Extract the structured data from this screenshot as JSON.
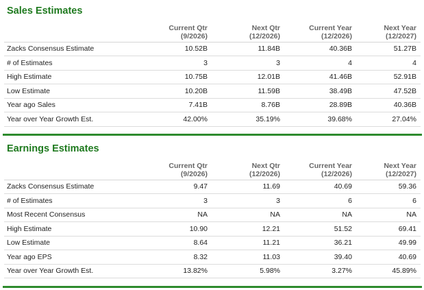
{
  "sales": {
    "title": "Sales Estimates",
    "columns": [
      {
        "line1": "Current Qtr",
        "line2": "(9/2026)"
      },
      {
        "line1": "Next Qtr",
        "line2": "(12/2026)"
      },
      {
        "line1": "Current Year",
        "line2": "(12/2026)"
      },
      {
        "line1": "Next Year",
        "line2": "(12/2027)"
      }
    ],
    "rows": [
      {
        "label": "Zacks Consensus Estimate",
        "values": [
          "10.52B",
          "11.84B",
          "40.36B",
          "51.27B"
        ]
      },
      {
        "label": "# of Estimates",
        "values": [
          "3",
          "3",
          "4",
          "4"
        ]
      },
      {
        "label": "High Estimate",
        "values": [
          "10.75B",
          "12.01B",
          "41.46B",
          "52.91B"
        ]
      },
      {
        "label": "Low Estimate",
        "values": [
          "10.20B",
          "11.59B",
          "38.49B",
          "47.52B"
        ]
      },
      {
        "label": "Year ago Sales",
        "values": [
          "7.41B",
          "8.76B",
          "28.89B",
          "40.36B"
        ]
      },
      {
        "label": "Year over Year Growth Est.",
        "values": [
          "42.00%",
          "35.19%",
          "39.68%",
          "27.04%"
        ]
      }
    ]
  },
  "earnings": {
    "title": "Earnings Estimates",
    "columns": [
      {
        "line1": "Current Qtr",
        "line2": "(9/2026)"
      },
      {
        "line1": "Next Qtr",
        "line2": "(12/2026)"
      },
      {
        "line1": "Current Year",
        "line2": "(12/2026)"
      },
      {
        "line1": "Next Year",
        "line2": "(12/2027)"
      }
    ],
    "rows": [
      {
        "label": "Zacks Consensus Estimate",
        "values": [
          "9.47",
          "11.69",
          "40.69",
          "59.36"
        ]
      },
      {
        "label": "# of Estimates",
        "values": [
          "3",
          "3",
          "6",
          "6"
        ]
      },
      {
        "label": "Most Recent Consensus",
        "values": [
          "NA",
          "NA",
          "NA",
          "NA"
        ]
      },
      {
        "label": "High Estimate",
        "values": [
          "10.90",
          "12.21",
          "51.52",
          "69.41"
        ]
      },
      {
        "label": "Low Estimate",
        "values": [
          "8.64",
          "11.21",
          "36.21",
          "49.99"
        ]
      },
      {
        "label": "Year ago EPS",
        "values": [
          "8.32",
          "11.03",
          "39.40",
          "40.69"
        ]
      },
      {
        "label": "Year over Year Growth Est.",
        "values": [
          "13.82%",
          "5.98%",
          "3.27%",
          "45.89%"
        ]
      }
    ]
  },
  "colors": {
    "title_green": "#1f7a1f",
    "rule_green": "#2e8b2e",
    "header_gray": "#666666"
  }
}
